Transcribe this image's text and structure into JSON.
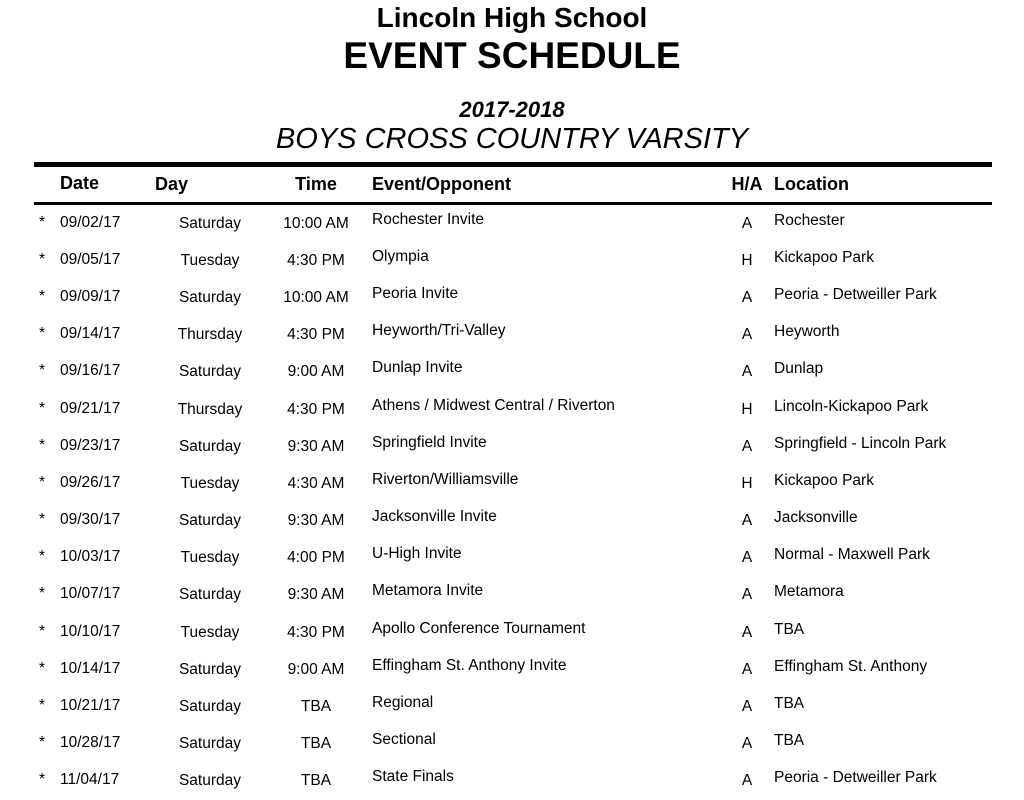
{
  "page": {
    "background_color": "#ffffff",
    "text_color": "#000000"
  },
  "header": {
    "school": "Lincoln High School",
    "title": "EVENT SCHEDULE",
    "season": "2017-2018",
    "team": "BOYS CROSS COUNTRY VARSITY"
  },
  "table": {
    "row_marker": "*",
    "columns": {
      "date": "Date",
      "day": "Day",
      "time": "Time",
      "event": "Event/Opponent",
      "ha": "H/A",
      "location": "Location"
    },
    "rows": [
      {
        "date": "09/02/17",
        "day": "Saturday",
        "time": "10:00 AM",
        "event": "Rochester Invite",
        "ha": "A",
        "location": "Rochester"
      },
      {
        "date": "09/05/17",
        "day": "Tuesday",
        "time": "4:30 PM",
        "event": "Olympia",
        "ha": "H",
        "location": "Kickapoo Park"
      },
      {
        "date": "09/09/17",
        "day": "Saturday",
        "time": "10:00 AM",
        "event": "Peoria Invite",
        "ha": "A",
        "location": "Peoria - Detweiller Park"
      },
      {
        "date": "09/14/17",
        "day": "Thursday",
        "time": "4:30 PM",
        "event": "Heyworth/Tri-Valley",
        "ha": "A",
        "location": "Heyworth"
      },
      {
        "date": "09/16/17",
        "day": "Saturday",
        "time": "9:00 AM",
        "event": "Dunlap Invite",
        "ha": "A",
        "location": "Dunlap"
      },
      {
        "date": "09/21/17",
        "day": "Thursday",
        "time": "4:30 PM",
        "event": "Athens / Midwest Central / Riverton",
        "ha": "H",
        "location": "Lincoln-Kickapoo Park"
      },
      {
        "date": "09/23/17",
        "day": "Saturday",
        "time": "9:30 AM",
        "event": "Springfield Invite",
        "ha": "A",
        "location": "Springfield - Lincoln Park"
      },
      {
        "date": "09/26/17",
        "day": "Tuesday",
        "time": "4:30 AM",
        "event": "Riverton/Williamsville",
        "ha": "H",
        "location": "Kickapoo Park"
      },
      {
        "date": "09/30/17",
        "day": "Saturday",
        "time": "9:30 AM",
        "event": "Jacksonville Invite",
        "ha": "A",
        "location": "Jacksonville"
      },
      {
        "date": "10/03/17",
        "day": "Tuesday",
        "time": "4:00 PM",
        "event": "U-High Invite",
        "ha": "A",
        "location": "Normal - Maxwell Park"
      },
      {
        "date": "10/07/17",
        "day": "Saturday",
        "time": "9:30 AM",
        "event": "Metamora Invite",
        "ha": "A",
        "location": "Metamora"
      },
      {
        "date": "10/10/17",
        "day": "Tuesday",
        "time": "4:30 PM",
        "event": "Apollo Conference Tournament",
        "ha": "A",
        "location": "TBA"
      },
      {
        "date": "10/14/17",
        "day": "Saturday",
        "time": "9:00 AM",
        "event": "Effingham St. Anthony Invite",
        "ha": "A",
        "location": "Effingham St. Anthony"
      },
      {
        "date": "10/21/17",
        "day": "Saturday",
        "time": "TBA",
        "event": "Regional",
        "ha": "A",
        "location": "TBA"
      },
      {
        "date": "10/28/17",
        "day": "Saturday",
        "time": "TBA",
        "event": "Sectional",
        "ha": "A",
        "location": "TBA"
      },
      {
        "date": "11/04/17",
        "day": "Saturday",
        "time": "TBA",
        "event": "State Finals",
        "ha": "A",
        "location": "Peoria - Detweiller Park"
      }
    ]
  }
}
